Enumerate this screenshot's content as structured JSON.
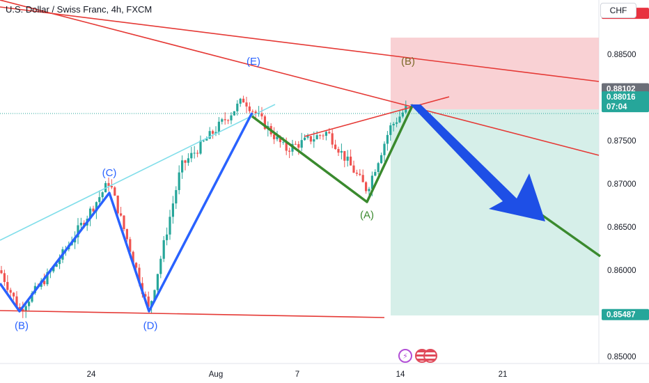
{
  "title": "U.S. Dollar / Swiss Franc, 4h, FXCM",
  "currency_button": "CHF",
  "colors": {
    "bull": "#26a69a",
    "bear": "#ef5350",
    "wave_blue": "#2962ff",
    "wave_green": "#3a8a2e",
    "trendline_red": "#e53935",
    "trendline_cyan": "#80deea",
    "stop_zone": "#f8c9cc",
    "target_zone": "#cfece5",
    "arrow_blue": "#1e4fe6",
    "tag_red": "#e8323f",
    "tag_gray": "#6b6f78",
    "tag_green": "#26a69a"
  },
  "chart_data": {
    "type": "candlestick",
    "title": "U.S. Dollar / Swiss Franc, 4h, FXCM",
    "x_ticks": [
      "24",
      "Aug",
      "7",
      "14",
      "21"
    ],
    "y_ticks": [
      "0.88500",
      "0.88000",
      "0.87500",
      "0.87000",
      "0.86500",
      "0.86000",
      "0.85500",
      "0.85000"
    ],
    "ylim": [
      0.8492,
      0.8913
    ],
    "price_tags": [
      {
        "label": "0.88976",
        "value": 0.88976,
        "kind": "stop"
      },
      {
        "label": "0.88102",
        "value": 0.88102,
        "kind": "entry"
      },
      {
        "label": "0.88016",
        "sub": "07:04",
        "value": 0.88016,
        "kind": "last"
      },
      {
        "label": "0.85487",
        "value": 0.85487,
        "kind": "target"
      }
    ],
    "wave_labels": [
      {
        "text": "(B)",
        "price": 0.8536,
        "color": "blue"
      },
      {
        "text": "(C)",
        "price": 0.8713,
        "color": "blue"
      },
      {
        "text": "(D)",
        "price": 0.8536,
        "color": "blue"
      },
      {
        "text": "(E)",
        "price": 0.8842,
        "color": "blue"
      },
      {
        "text": "(A)",
        "price": 0.8664,
        "color": "green"
      },
      {
        "text": "(B)",
        "price": 0.8842,
        "color": "olive"
      }
    ],
    "pattern_points": [
      {
        "label": "B",
        "price": 0.8554
      },
      {
        "label": "C",
        "price": 0.8703
      },
      {
        "label": "D",
        "price": 0.8553
      },
      {
        "label": "E",
        "price": 0.8803
      },
      {
        "label": "A",
        "price": 0.8693
      },
      {
        "label": "B",
        "price": 0.881
      }
    ],
    "event_icons": [
      "flash-icon",
      "us-flag-icon",
      "us-flag-icon"
    ]
  }
}
